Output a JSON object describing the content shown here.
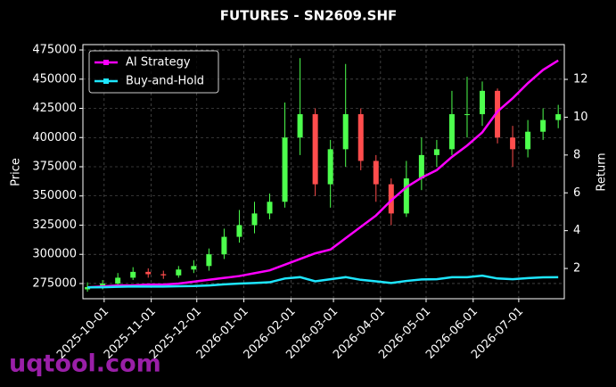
{
  "chart_data": {
    "type": "candlestick",
    "title": "FUTURES - SN2609.SHF",
    "ylabel": "Price",
    "y2label": "Return",
    "watermark": "uqtool.com",
    "x": [
      "2025-09-20",
      "2025-09-30",
      "2025-10-10",
      "2025-10-20",
      "2025-10-30",
      "2025-11-09",
      "2025-11-19",
      "2025-11-29",
      "2025-12-09",
      "2025-12-19",
      "2025-12-29",
      "2026-01-08",
      "2026-01-18",
      "2026-01-28",
      "2026-02-07",
      "2026-02-17",
      "2026-02-27",
      "2026-03-09",
      "2026-03-19",
      "2026-03-29",
      "2026-04-08",
      "2026-04-18",
      "2026-04-28",
      "2026-05-08",
      "2026-05-18",
      "2026-05-28",
      "2026-06-07",
      "2026-06-17",
      "2026-06-27",
      "2026-07-07",
      "2026-07-17",
      "2026-07-27"
    ],
    "candles": {
      "open": [
        270000,
        272000,
        275000,
        280000,
        285000,
        283000,
        282000,
        287000,
        290000,
        300000,
        315000,
        325000,
        335000,
        345000,
        400000,
        420000,
        360000,
        390000,
        420000,
        380000,
        360000,
        335000,
        365000,
        385000,
        390000,
        420000,
        420000,
        440000,
        400000,
        390000,
        405000,
        415000
      ],
      "high": [
        276000,
        278000,
        284000,
        289000,
        288000,
        286000,
        290000,
        295000,
        305000,
        322000,
        338000,
        345000,
        352000,
        430000,
        468000,
        425000,
        398000,
        463000,
        425000,
        385000,
        365000,
        380000,
        400000,
        398000,
        440000,
        452000,
        448000,
        442000,
        410000,
        415000,
        425000,
        428000
      ],
      "low": [
        268000,
        270000,
        273000,
        278000,
        280000,
        279000,
        280000,
        284000,
        286000,
        296000,
        310000,
        318000,
        330000,
        340000,
        385000,
        350000,
        340000,
        375000,
        372000,
        345000,
        325000,
        332000,
        355000,
        375000,
        385000,
        400000,
        410000,
        395000,
        375000,
        383000,
        398000,
        408000
      ],
      "close": [
        272000,
        275000,
        280000,
        285000,
        283000,
        282000,
        287000,
        290000,
        300000,
        315000,
        325000,
        335000,
        345000,
        400000,
        420000,
        360000,
        390000,
        420000,
        380000,
        360000,
        335000,
        365000,
        385000,
        390000,
        420000,
        420000,
        440000,
        400000,
        390000,
        405000,
        415000,
        420000
      ],
      "up_color": "#4dff4d",
      "down_color": "#ff4d4d"
    },
    "series": [
      {
        "name": "AI Strategy",
        "color": "#ff00ff",
        "axis": "y2",
        "values": [
          1.0,
          1.05,
          1.1,
          1.1,
          1.15,
          1.15,
          1.2,
          1.3,
          1.4,
          1.5,
          1.6,
          1.75,
          1.9,
          2.2,
          2.5,
          2.8,
          3.0,
          3.6,
          4.2,
          4.8,
          5.6,
          6.3,
          6.8,
          7.2,
          7.9,
          8.5,
          9.2,
          10.3,
          11.0,
          11.8,
          12.5,
          13.0
        ]
      },
      {
        "name": "Buy-and-Hold",
        "color": "#1ee6ff",
        "axis": "y2",
        "values": [
          1.0,
          1.01,
          1.03,
          1.05,
          1.04,
          1.04,
          1.06,
          1.07,
          1.1,
          1.16,
          1.2,
          1.23,
          1.27,
          1.47,
          1.54,
          1.32,
          1.43,
          1.54,
          1.4,
          1.32,
          1.23,
          1.34,
          1.42,
          1.43,
          1.54,
          1.54,
          1.62,
          1.47,
          1.43,
          1.49,
          1.53,
          1.54
        ]
      }
    ],
    "xlim": [
      "2025-09-17",
      "2026-07-31"
    ],
    "xticks": [
      "2025-10-01",
      "2025-11-01",
      "2025-12-01",
      "2026-01-01",
      "2026-02-01",
      "2026-03-01",
      "2026-04-01",
      "2026-05-01",
      "2026-06-01",
      "2026-07-01"
    ],
    "ylim": [
      262000,
      479600
    ],
    "yticks": [
      275000,
      300000,
      325000,
      350000,
      375000,
      400000,
      425000,
      450000,
      475000
    ],
    "y2lim": [
      0.4,
      13.84
    ],
    "y2ticks": [
      2,
      4,
      6,
      8,
      10,
      12
    ],
    "grid": true,
    "legend": "upper left"
  }
}
